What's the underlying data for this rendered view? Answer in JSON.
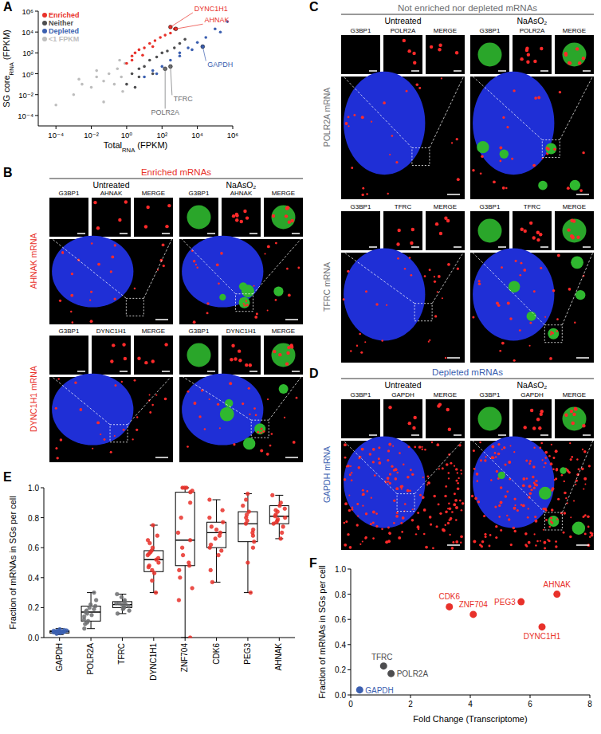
{
  "chart_data": [
    {
      "panel": "A",
      "type": "scatter",
      "xlabel": [
        "Total",
        "RNA",
        " (FPKM)"
      ],
      "ylabel": [
        "SG core",
        "RNA",
        " (FPKM)"
      ],
      "log": true,
      "grid": false,
      "legend": "upper left",
      "xlim": [
        1e-05,
        1000000
      ],
      "ylim": [
        1e-05,
        1000000
      ],
      "xticks": [
        {
          "value": 0.0001,
          "label": "10⁻⁴"
        },
        {
          "value": 0.01,
          "label": "10⁻²"
        },
        {
          "value": 1,
          "label": "10⁰"
        },
        {
          "value": 100,
          "label": "10²"
        },
        {
          "value": 10000,
          "label": "10⁴"
        },
        {
          "value": 1000000,
          "label": "10⁶"
        }
      ],
      "yticks": [
        {
          "value": 0.0001,
          "label": "10⁻⁴"
        },
        {
          "value": 0.01,
          "label": "10⁻²"
        },
        {
          "value": 1,
          "label": "10⁰"
        },
        {
          "value": 100,
          "label": "10²"
        },
        {
          "value": 10000,
          "label": "10⁴"
        },
        {
          "value": 1000000,
          "label": "10⁶"
        }
      ],
      "series": [
        {
          "name": "Enriched",
          "color": "#e8312a",
          "x": [
            1,
            2,
            3,
            5,
            10,
            20,
            40,
            80,
            150,
            300,
            2,
            8,
            500,
            30
          ],
          "values": [
            10,
            50,
            100,
            200,
            300,
            800,
            1500,
            3000,
            5000,
            8000,
            20,
            60,
            20000,
            400
          ]
        },
        {
          "name": "Neither",
          "color": "#4d4d4f",
          "x": [
            1,
            2,
            5,
            10,
            20,
            50,
            100,
            200,
            500,
            3,
            30,
            1000,
            2000,
            5
          ],
          "values": [
            0.1,
            1,
            3,
            5,
            20,
            40,
            100,
            150,
            300,
            0.05,
            1,
            800,
            2000,
            0.5
          ]
        },
        {
          "name": "Depleted",
          "color": "#3b5fb0",
          "x": [
            10,
            30,
            100,
            300,
            1000,
            3000,
            10000,
            30000,
            100000,
            200000,
            500000,
            1000,
            5000,
            50
          ],
          "values": [
            0.5,
            2,
            5,
            20,
            50,
            300,
            1000,
            3000,
            20000,
            10000,
            100000,
            100,
            200,
            1
          ]
        },
        {
          "name": "<1 FPKM",
          "color": "#bdbdbd",
          "x": [
            0.0001,
            0.001,
            0.003,
            0.01,
            0.02,
            0.05,
            0.1,
            0.2,
            0.3,
            0.5,
            0.05,
            0.8,
            0.4,
            0.6,
            0.002,
            0.02
          ],
          "values": [
            0.001,
            0.01,
            0.1,
            0.05,
            0.5,
            0.2,
            1,
            0.1,
            3,
            0.5,
            0.002,
            10,
            20,
            0.02,
            0.3,
            2
          ]
        }
      ],
      "annotations": [
        {
          "text": "DYNC1H1",
          "x": 300,
          "y": 30000,
          "color": "#e8312a"
        },
        {
          "text": "AHNAK",
          "x": 600,
          "y": 20000,
          "color": "#e8312a"
        },
        {
          "text": "GAPDH",
          "x": 20000,
          "y": 400,
          "color": "#3b5fb0"
        },
        {
          "text": "TFRC",
          "x": 300,
          "y": 5,
          "color": "#6d6e71"
        },
        {
          "text": "POLR2A",
          "x": 150,
          "y": 3,
          "color": "#6d6e71"
        }
      ]
    },
    {
      "panel": "E",
      "type": "box",
      "ylabel": "Fraction of mRNAs in SGs per cell",
      "ylim": [
        0,
        1
      ],
      "yticks": [
        {
          "value": 0,
          "label": "0.0"
        },
        0.2,
        0.4,
        0.6,
        0.8,
        {
          "value": 1,
          "label": "1.0"
        }
      ],
      "categories": [
        "GAPDH",
        "POLR2A",
        "TFRC",
        "DYNC1H1",
        "ZNF704",
        "CDK6",
        "PEG3",
        "AHNAK"
      ],
      "colors": [
        "#3b5fb0",
        "#6d6e71",
        "#6d6e71",
        "#e8312a",
        "#e8312a",
        "#e8312a",
        "#e8312a",
        "#e8312a"
      ],
      "boxes": [
        {
          "min": 0.02,
          "q1": 0.03,
          "median": 0.04,
          "q3": 0.045,
          "max": 0.06
        },
        {
          "min": 0.06,
          "q1": 0.11,
          "median": 0.17,
          "q3": 0.21,
          "max": 0.3
        },
        {
          "min": 0.16,
          "q1": 0.2,
          "median": 0.22,
          "q3": 0.24,
          "max": 0.29
        },
        {
          "min": 0.3,
          "q1": 0.44,
          "median": 0.52,
          "q3": 0.58,
          "max": 0.75
        },
        {
          "min": 0,
          "q1": 0.48,
          "median": 0.65,
          "q3": 0.97,
          "max": 1
        },
        {
          "min": 0.37,
          "q1": 0.6,
          "median": 0.7,
          "q3": 0.77,
          "max": 0.92
        },
        {
          "min": 0.3,
          "q1": 0.64,
          "median": 0.76,
          "q3": 0.84,
          "max": 0.96
        },
        {
          "min": 0.66,
          "q1": 0.76,
          "median": 0.81,
          "q3": 0.88,
          "max": 0.95
        }
      ],
      "points": [
        [
          0.03,
          0.035,
          0.04,
          0.042,
          0.045,
          0.038,
          0.05,
          0.033,
          0.041,
          0.044,
          0.036,
          0.047,
          0.039,
          0.043,
          0.055,
          0.025,
          0.04,
          0.037
        ],
        [
          0.06,
          0.09,
          0.11,
          0.12,
          0.14,
          0.16,
          0.17,
          0.18,
          0.19,
          0.2,
          0.21,
          0.22,
          0.25,
          0.3,
          0.15,
          0.1
        ],
        [
          0.16,
          0.18,
          0.2,
          0.21,
          0.22,
          0.22,
          0.23,
          0.24,
          0.25,
          0.27,
          0.29,
          0.2,
          0.23,
          0.19
        ],
        [
          0.3,
          0.38,
          0.43,
          0.45,
          0.48,
          0.5,
          0.52,
          0.53,
          0.55,
          0.57,
          0.58,
          0.6,
          0.63,
          0.68,
          0.75,
          0.47,
          0.56,
          0.65
        ],
        [
          0,
          0.25,
          0.4,
          0.48,
          0.5,
          0.55,
          0.6,
          0.65,
          0.7,
          0.8,
          0.9,
          0.97,
          1,
          1,
          1,
          0.98,
          0.45,
          0.33
        ],
        [
          0.37,
          0.45,
          0.55,
          0.6,
          0.62,
          0.66,
          0.7,
          0.72,
          0.74,
          0.77,
          0.8,
          0.85,
          0.92,
          0.68,
          0.58
        ],
        [
          0.3,
          0.5,
          0.6,
          0.64,
          0.68,
          0.72,
          0.76,
          0.78,
          0.8,
          0.84,
          0.88,
          0.92,
          0.96,
          0.82,
          0.7
        ],
        [
          0.66,
          0.7,
          0.74,
          0.76,
          0.78,
          0.8,
          0.81,
          0.82,
          0.84,
          0.86,
          0.88,
          0.9,
          0.95,
          0.79,
          0.77,
          0.85
        ]
      ]
    },
    {
      "panel": "F",
      "type": "scatter",
      "xlabel": "Fold Change (Transcriptome)",
      "ylabel": "Fraction of mRNAs in SGs per cell",
      "xlim": [
        0,
        8
      ],
      "xticks": [
        0,
        2,
        4,
        6,
        8
      ],
      "ylim": [
        0,
        1
      ],
      "yticks": [
        {
          "value": 0,
          "label": "0.0"
        },
        0.2,
        0.4,
        0.6,
        0.8,
        {
          "value": 1,
          "label": "1.0"
        }
      ],
      "labels": [
        "GAPDH",
        "TFRC",
        "POLR2A",
        "CDK6",
        "ZNF704",
        "PEG3",
        "AHNAK",
        "DYNC1H1"
      ],
      "x": [
        0.3,
        1.1,
        1.35,
        3.3,
        4.1,
        5.7,
        6.9,
        6.4
      ],
      "values": [
        0.04,
        0.23,
        0.17,
        0.7,
        0.64,
        0.74,
        0.8,
        0.54
      ],
      "colors": [
        "#3b5fb0",
        "#4d4d4f",
        "#4d4d4f",
        "#e8312a",
        "#e8312a",
        "#e8312a",
        "#e8312a",
        "#e8312a"
      ]
    }
  ],
  "image_panels": [
    {
      "panel": "B",
      "title": "Enriched mRNAs",
      "color": "#e8312a",
      "conditions": [
        "Untreated",
        "NaAsO₂"
      ],
      "rows": [
        {
          "label": "AHNAK mRNA",
          "channels": [
            "G3BP1",
            "AHNAK",
            "MERGE"
          ]
        },
        {
          "label": "DYNC1H1 mRNA",
          "channels": [
            "G3BP1",
            "DYNC1H1",
            "MERGE"
          ]
        }
      ]
    },
    {
      "panel": "C",
      "title": "Not enriched nor depleted mRNAs",
      "color": "#6d6e71",
      "conditions": [
        "Untreated",
        "NaAsO₂"
      ],
      "rows": [
        {
          "label": "POLR2A mRNA",
          "channels": [
            "G3BP1",
            "POLR2A",
            "MERGE"
          ]
        },
        {
          "label": "TFRC mRNA",
          "channels": [
            "G3BP1",
            "TFRC",
            "MERGE"
          ]
        }
      ]
    },
    {
      "panel": "D",
      "title": "Depleted mRNAs",
      "color": "#3b5fb0",
      "conditions": [
        "Untreated",
        "NaAsO₂"
      ],
      "rows": [
        {
          "label": "GAPDH mRNA",
          "channels": [
            "G3BP1",
            "GAPDH",
            "MERGE"
          ]
        }
      ]
    }
  ]
}
